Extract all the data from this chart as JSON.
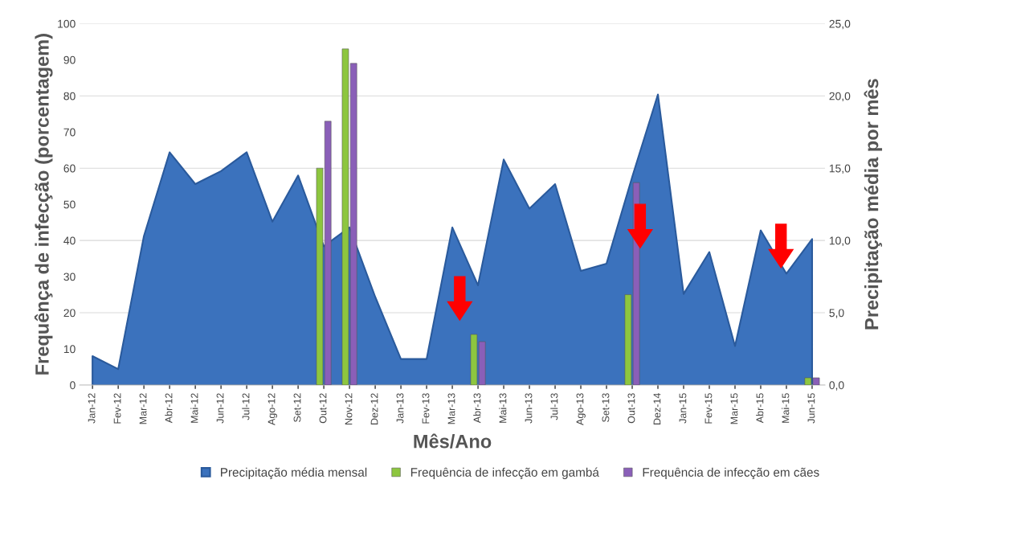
{
  "chart_data": {
    "type": "bar",
    "xlabel": "Mês/Ano",
    "ylabel": "Frequênça de infecção (porcentagem)",
    "y2label": "Precipitação média por mês",
    "categories": [
      "Jan-12",
      "Fev-12",
      "Mar-12",
      "Abr-12",
      "Mai-12",
      "Jun-12",
      "Jul-12",
      "Ago-12",
      "Set-12",
      "Out-12",
      "Nov-12",
      "Dez-12",
      "Jan-13",
      "Fev-13",
      "Mar-13",
      "Abr-13",
      "Mai-13",
      "Jun-13",
      "Jul-13",
      "Ago-13",
      "Set-13",
      "Out-13",
      "Dez-14",
      "Jan-15",
      "Fev-15",
      "Mar-15",
      "Abr-15",
      "Mai-15",
      "Jun-15"
    ],
    "series": [
      {
        "name": "Precipitação média mensal",
        "type": "area",
        "axis": "y2",
        "color": "#3b72bd",
        "values": [
          2.0,
          1.1,
          10.3,
          16.1,
          13.9,
          14.8,
          16.1,
          11.3,
          14.5,
          9.6,
          10.9,
          6.1,
          1.8,
          1.8,
          10.9,
          6.9,
          15.6,
          12.2,
          13.9,
          7.9,
          8.4,
          14.4,
          20.1,
          6.3,
          9.2,
          2.7,
          10.7,
          7.7,
          10.1
        ]
      },
      {
        "name": "Frequência de infecção em gambá",
        "axis": "y",
        "color": "#8dc63f",
        "values": [
          null,
          null,
          null,
          null,
          null,
          null,
          null,
          null,
          null,
          60,
          93,
          null,
          null,
          null,
          null,
          14,
          null,
          null,
          null,
          null,
          null,
          25,
          null,
          null,
          null,
          null,
          null,
          null,
          2
        ]
      },
      {
        "name": "Frequência de infecção em cães",
        "axis": "y",
        "color": "#8a5fb8",
        "values": [
          null,
          null,
          null,
          null,
          null,
          null,
          null,
          null,
          null,
          73,
          89,
          null,
          null,
          null,
          null,
          12,
          null,
          null,
          null,
          null,
          null,
          56,
          null,
          null,
          null,
          null,
          null,
          null,
          2
        ]
      }
    ],
    "ylim": [
      0,
      100
    ],
    "yticks": [
      0,
      10,
      20,
      30,
      40,
      50,
      60,
      70,
      80,
      90,
      100
    ],
    "y2lim": [
      0,
      25
    ],
    "y2ticks": [
      {
        "value": 0,
        "label": "0,0"
      },
      {
        "value": 5,
        "label": "5,0"
      },
      {
        "value": 10,
        "label": "10,0"
      },
      {
        "value": 15,
        "label": "15,0"
      },
      {
        "value": 20,
        "label": "20,0"
      },
      {
        "value": 25,
        "label": "25,0"
      }
    ],
    "grid": "y",
    "legend": "bottom"
  }
}
